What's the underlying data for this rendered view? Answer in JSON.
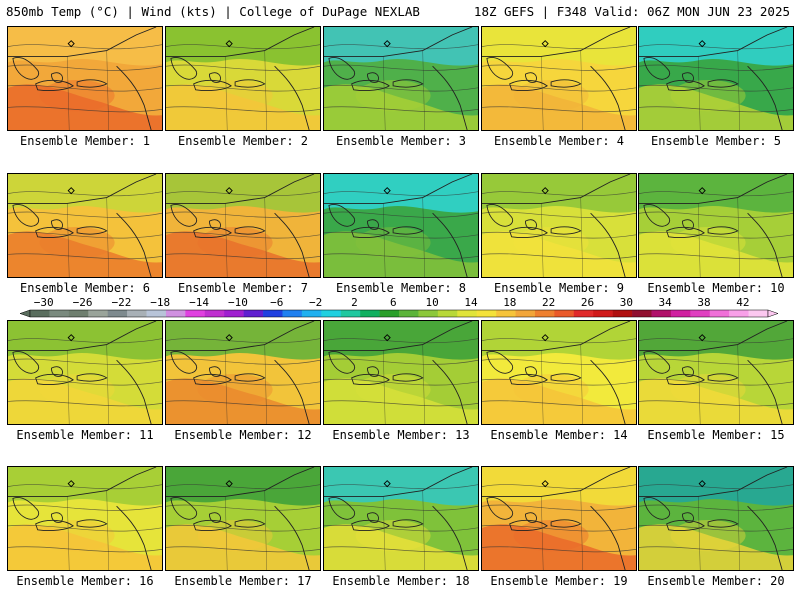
{
  "header": {
    "title": "850mb Temp (°C) | Wind (kts) | College of DuPage NEXLAB",
    "run_info": "18Z GEFS | F348 Valid: 06Z MON JUN 23 2025"
  },
  "label_prefix": "Ensemble Member:",
  "members": [
    {
      "label": "Ensemble Member: 1",
      "base": "#f2a83a",
      "warm": "#ea6a2a",
      "cool": "#f7c14a"
    },
    {
      "label": "Ensemble Member: 2",
      "base": "#d9d938",
      "warm": "#f3c63a",
      "cool": "#7bbd2f"
    },
    {
      "label": "Ensemble Member: 3",
      "base": "#4fb04a",
      "warm": "#a6d036",
      "cool": "#3fc7c7"
    },
    {
      "label": "Ensemble Member: 4",
      "base": "#f6d63c",
      "warm": "#f2b43a",
      "cool": "#e6e63a"
    },
    {
      "label": "Ensemble Member: 5",
      "base": "#38a84a",
      "warm": "#b6d236",
      "cool": "#2fd3d3"
    },
    {
      "label": "Ensemble Member: 6",
      "base": "#f4c23b",
      "warm": "#ea7a2c",
      "cool": "#c6d83a"
    },
    {
      "label": "Ensemble Member: 7",
      "base": "#f0b43a",
      "warm": "#e8702c",
      "cool": "#9ac83a"
    },
    {
      "label": "Ensemble Member: 8",
      "base": "#3aa84a",
      "warm": "#86c23a",
      "cool": "#2fd6d6"
    },
    {
      "label": "Ensemble Member: 9",
      "base": "#d8e03a",
      "warm": "#f3e23c",
      "cool": "#8cc43a"
    },
    {
      "label": "Ensemble Member: 10",
      "base": "#a6cf38",
      "warm": "#e4e43a",
      "cool": "#4faf3f"
    },
    {
      "label": "Ensemble Member: 11",
      "base": "#d4dc38",
      "warm": "#f2d63a",
      "cool": "#7fbd33"
    },
    {
      "label": "Ensemble Member: 12",
      "base": "#f2c43a",
      "warm": "#ea8a2e",
      "cool": "#5fb23a"
    },
    {
      "label": "Ensemble Member: 13",
      "base": "#a4cd36",
      "warm": "#d8e03a",
      "cool": "#3a9f3a"
    },
    {
      "label": "Ensemble Member: 14",
      "base": "#f2ea3c",
      "warm": "#f6c43a",
      "cool": "#a6d036"
    },
    {
      "label": "Ensemble Member: 15",
      "base": "#b8d638",
      "warm": "#f2da3a",
      "cool": "#3f9f3a"
    },
    {
      "label": "Ensemble Member: 16",
      "base": "#e6e43a",
      "warm": "#f6c43a",
      "cool": "#9ccb36"
    },
    {
      "label": "Ensemble Member: 17",
      "base": "#a6cf36",
      "warm": "#f4c83a",
      "cool": "#3a9f3a"
    },
    {
      "label": "Ensemble Member: 18",
      "base": "#7fc23a",
      "warm": "#e8e03a",
      "cool": "#2fc8c8"
    },
    {
      "label": "Ensemble Member: 19",
      "base": "#f2b43a",
      "warm": "#ea6a2a",
      "cool": "#f2e03a"
    },
    {
      "label": "Ensemble Member: 20",
      "base": "#5cb43e",
      "warm": "#e8d43a",
      "cool": "#1fa6a0"
    }
  ],
  "colorbar": {
    "labels": [
      "−30",
      "−26",
      "−22",
      "−18",
      "−14",
      "−10",
      "−6",
      "−2",
      "2",
      "6",
      "10",
      "14",
      "18",
      "22",
      "26",
      "30",
      "34",
      "38",
      "42"
    ],
    "colors": [
      "#5a6e5e",
      "#7a8a7e",
      "#6f7f6f",
      "#9aa49a",
      "#7e8a8e",
      "#a8b0b6",
      "#b8c4d8",
      "#d090e0",
      "#e040e0",
      "#c030d0",
      "#a020d0",
      "#6020d0",
      "#2040e0",
      "#2080f0",
      "#20b0f0",
      "#20d0e0",
      "#20c8a0",
      "#10b060",
      "#2a9f2a",
      "#5cb43a",
      "#8cc83a",
      "#b8d838",
      "#e0e43a",
      "#f4e23a",
      "#f6c43a",
      "#f2a63a",
      "#ee8030",
      "#ea5a2a",
      "#e02a2a",
      "#d01a1a",
      "#b01010",
      "#901030",
      "#b0106a",
      "#d020a0",
      "#e040c0",
      "#f070d8",
      "#f8a0e8",
      "#fcc8f0"
    ]
  }
}
